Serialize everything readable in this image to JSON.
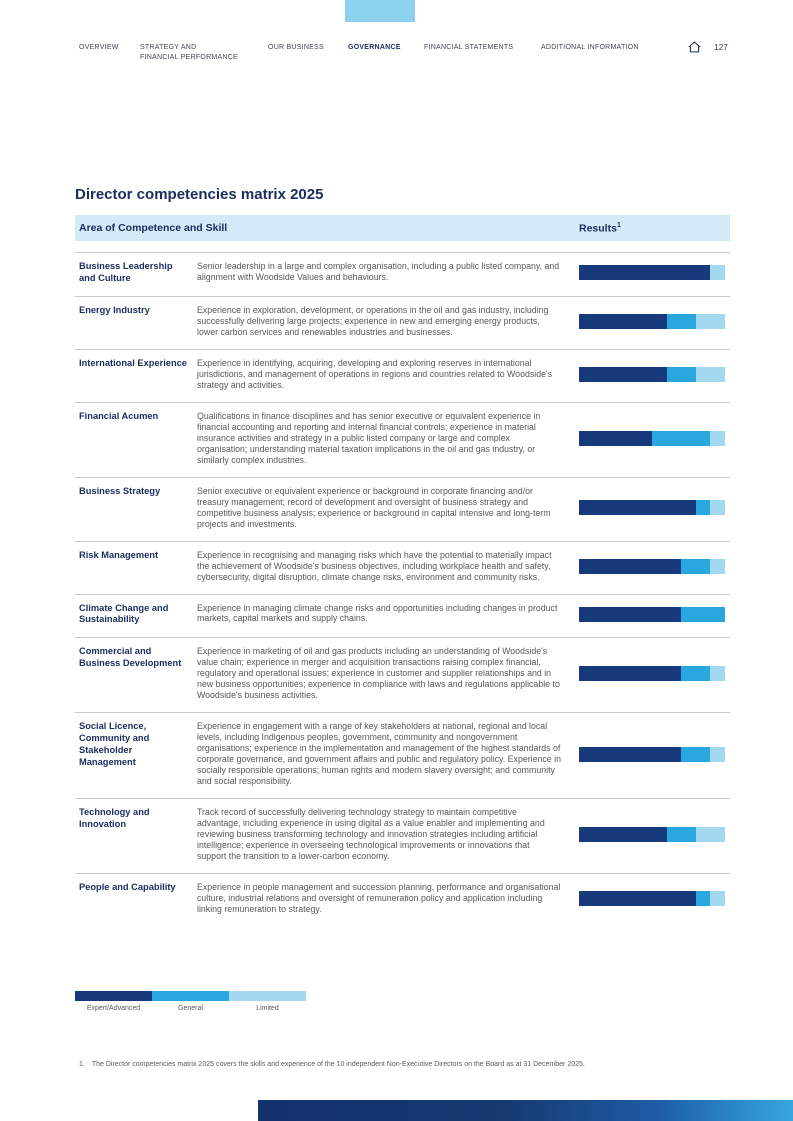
{
  "nav": {
    "items": [
      {
        "label": "OVERVIEW"
      },
      {
        "label": "STRATEGY AND\nFINANCIAL PERFORMANCE"
      },
      {
        "label": "OUR BUSINESS"
      },
      {
        "label": "GOVERNANCE"
      },
      {
        "label": "FINANCIAL STATEMENTS"
      },
      {
        "label": "ADDITIONAL INFORMATION"
      }
    ],
    "active_item": "GOVERNANCE",
    "page_number": "127"
  },
  "title": "Director competencies matrix 2025",
  "table": {
    "header": {
      "skill_column": "Area of Competence and Skill",
      "results_column": "Results",
      "results_superscript": "1"
    },
    "rows": [
      {
        "title": "Business Leadership and Culture",
        "description": "Senior leadership in a large and complex organisation, including a public listed company, and alignment with Woodside Values and behaviours."
      },
      {
        "title": "Energy Industry",
        "description": "Experience in exploration, development, or operations in the oil and gas industry, including successfully delivering large projects; experience in new and emerging energy products, lower carbon services and renewables industries and businesses."
      },
      {
        "title": "International Experience",
        "description": "Experience in identifying, acquiring, developing and exploring reserves in international jurisdictions, and management of operations in regions and countries related to Woodside's strategy and activities."
      },
      {
        "title": "Financial Acumen",
        "description": "Qualifications in finance disciplines and has senior executive or equivalent experience in financial accounting and reporting and internal financial controls; experience in material insurance activities and strategy in a public listed company or large and complex organisation; understanding material taxation implications in the oil and gas industry, or similarly complex industries."
      },
      {
        "title": "Business Strategy",
        "description": "Senior executive or equivalent experience or background in corporate financing and/or treasury management; record of development and oversight of business strategy and competitive business analysis; experience or background in capital intensive and long-term projects and investments."
      },
      {
        "title": "Risk Management",
        "description": "Experience in recognising and managing risks which have the potential to materially impact the achievement of Woodside's business objectives, including workplace health and safety, cybersecurity, digital disruption, climate change risks, environment and community risks."
      },
      {
        "title": "Climate Change and Sustainability",
        "description": "Experience in managing climate change risks and opportunities including changes in product markets, capital markets and supply chains."
      },
      {
        "title": "Commercial and Business Development",
        "description": "Experience in marketing of oil and gas products including an understanding of Woodside's value chain; experience in merger and acquisition transactions raising complex financial, regulatory and operational issues; experience in customer and supplier relationships and in new business opportunities; experience in compliance with laws and regulations applicable to Woodside's business activities."
      },
      {
        "title": "Social Licence, Community and Stakeholder Management",
        "description": "Experience in engagement with a range of key stakeholders at national, regional and local levels, including Indigenous peoples, government, community and nongovernment organisations; experience in the implementation and management of the highest standards of corporate governance, and government affairs and public and regulatory policy. Experience in socially responsible operations; human rights and modern slavery oversight; and community and social responsibility."
      },
      {
        "title": "Technology and Innovation",
        "description": "Track record of successfully delivering technology strategy to maintain competitive advantage, including experience in using digital as a value enabler and implementing and reviewing business transforming technology and innovation strategies including artificial intelligence; experience in overseeing technological improvements or innovations that support the transition to a lower-carbon economy."
      },
      {
        "title": "People and Capability",
        "description": "Experience in people management and succession planning, performance and organisational culture, industrial relations and oversight of remuneration policy and application including linking remuneration to strategy."
      }
    ]
  },
  "chart_data": {
    "type": "bar",
    "subtype": "horizontal-stacked-100pct",
    "title": "Director competencies matrix 2025 — Results",
    "unit": "number of directors",
    "total": 10,
    "legend": [
      "Expert/Advanced",
      "General",
      "Limited"
    ],
    "legend_position": "bottom",
    "colors": [
      "#163a7c",
      "#29a8e0",
      "#a3d8f1"
    ],
    "categories": [
      "Business Leadership and Culture",
      "Energy Industry",
      "International Experience",
      "Financial Acumen",
      "Business Strategy",
      "Risk Management",
      "Climate Change and Sustainability",
      "Commercial and Business Development",
      "Social Licence, Community and Stakeholder Management",
      "Technology and Innovation",
      "People and Capability"
    ],
    "series": [
      {
        "name": "Expert/Advanced",
        "values": [
          9,
          6,
          6,
          5,
          8,
          7,
          7,
          7,
          7,
          6,
          8
        ]
      },
      {
        "name": "General",
        "values": [
          0,
          2,
          2,
          4,
          1,
          2,
          3,
          2,
          2,
          2,
          1
        ]
      },
      {
        "name": "Limited",
        "values": [
          1,
          2,
          2,
          1,
          1,
          1,
          0,
          1,
          1,
          2,
          1
        ]
      }
    ]
  },
  "footnote": {
    "marker": "1.",
    "text": "The Director competencies matrix 2025 covers the skills and experience of the 10 independent Non-Executive Directors on the Board as at 31 December 2025."
  }
}
